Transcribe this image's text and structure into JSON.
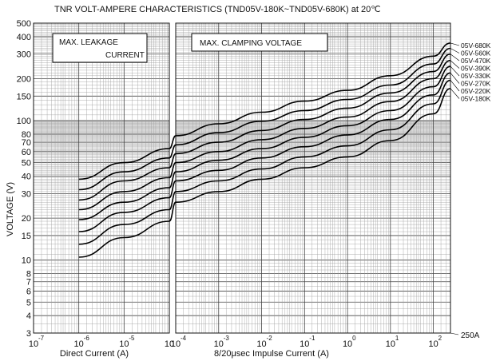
{
  "chart_data": {
    "type": "line",
    "title": "TNR  VOLT-AMPERE  CHARACTERISTICS (TND05V-180K~TND05V-680K)  at 20℃",
    "ylabel": "VOLTAGE (V)",
    "y_scale": "log",
    "ylim": [
      3,
      500
    ],
    "y_ticks": [
      {
        "v": 3,
        "label": "3"
      },
      {
        "v": 4,
        "label": "4"
      },
      {
        "v": 5,
        "label": "5"
      },
      {
        "v": 6,
        "label": "6"
      },
      {
        "v": 7,
        "label": "7"
      },
      {
        "v": 8,
        "label": "8"
      },
      {
        "v": 10,
        "label": "10"
      },
      {
        "v": 15,
        "label": "15"
      },
      {
        "v": 20,
        "label": "20"
      },
      {
        "v": 30,
        "label": "30"
      },
      {
        "v": 40,
        "label": "40"
      },
      {
        "v": 50,
        "label": "50"
      },
      {
        "v": 60,
        "label": "60"
      },
      {
        "v": 70,
        "label": "70"
      },
      {
        "v": 80,
        "label": "80"
      },
      {
        "v": 100,
        "label": "100"
      },
      {
        "v": 150,
        "label": "150"
      },
      {
        "v": 200,
        "label": "200"
      },
      {
        "v": 300,
        "label": "300"
      },
      {
        "v": 400,
        "label": "400"
      },
      {
        "v": 500,
        "label": "500"
      }
    ],
    "left_panel": {
      "xlabel": "Direct  Current (A)",
      "x_scale": "log",
      "xlim": [
        1e-07,
        0.0001
      ],
      "x_ticks": [
        {
          "v": 1e-07,
          "base": "10",
          "exp": "-7"
        },
        {
          "v": 1e-06,
          "base": "10",
          "exp": "-6"
        },
        {
          "v": 1e-05,
          "base": "10",
          "exp": "-5"
        },
        {
          "v": 0.0001,
          "base": "10",
          "exp": ""
        }
      ],
      "box_label": [
        "MAX.     LEAKAGE",
        "CURRENT"
      ]
    },
    "right_panel": {
      "xlabel": "8/20μsec  Impulse  Current (A)",
      "x_scale": "log",
      "xlim": [
        0.0001,
        250
      ],
      "x_ticks": [
        {
          "v": 0.0001,
          "base": "10",
          "exp": "-4"
        },
        {
          "v": 0.001,
          "base": "10",
          "exp": "-3"
        },
        {
          "v": 0.01,
          "base": "10",
          "exp": "-2"
        },
        {
          "v": 0.1,
          "base": "10",
          "exp": "-1"
        },
        {
          "v": 1,
          "base": "10",
          "exp": "0"
        },
        {
          "v": 10,
          "base": "10",
          "exp": "1"
        },
        {
          "v": 100,
          "base": "10",
          "exp": "2"
        }
      ],
      "box_label": "MAX.  CLAMPING  VOLTAGE",
      "end_annotation": "250A"
    },
    "series": [
      {
        "name": "05V-680K",
        "leakage": [
          [
            1e-06,
            38
          ],
          [
            1e-05,
            50
          ],
          [
            0.0001,
            63
          ]
        ],
        "clamp": [
          [
            0.0001,
            78
          ],
          [
            0.001,
            95
          ],
          [
            0.01,
            115
          ],
          [
            0.1,
            138
          ],
          [
            1,
            165
          ],
          [
            10,
            210
          ],
          [
            100,
            290
          ],
          [
            250,
            360
          ]
        ]
      },
      {
        "name": "05V-560K",
        "leakage": [
          [
            1e-06,
            32
          ],
          [
            1e-05,
            43
          ],
          [
            0.0001,
            54
          ]
        ],
        "clamp": [
          [
            0.0001,
            67
          ],
          [
            0.001,
            82
          ],
          [
            0.01,
            99
          ],
          [
            0.1,
            118
          ],
          [
            1,
            142
          ],
          [
            10,
            180
          ],
          [
            100,
            255
          ],
          [
            250,
            330
          ]
        ]
      },
      {
        "name": "05V-470K",
        "leakage": [
          [
            1e-06,
            27
          ],
          [
            1e-05,
            37
          ],
          [
            0.0001,
            46
          ]
        ],
        "clamp": [
          [
            0.0001,
            58
          ],
          [
            0.001,
            70
          ],
          [
            0.01,
            85
          ],
          [
            0.1,
            102
          ],
          [
            1,
            123
          ],
          [
            10,
            158
          ],
          [
            100,
            225
          ],
          [
            250,
            300
          ]
        ]
      },
      {
        "name": "05V-390K",
        "leakage": [
          [
            1e-06,
            23
          ],
          [
            1e-05,
            31
          ],
          [
            0.0001,
            39
          ]
        ],
        "clamp": [
          [
            0.0001,
            50
          ],
          [
            0.001,
            60
          ],
          [
            0.01,
            73
          ],
          [
            0.1,
            88
          ],
          [
            1,
            106
          ],
          [
            10,
            137
          ],
          [
            100,
            200
          ],
          [
            250,
            270
          ]
        ]
      },
      {
        "name": "05V-330K",
        "leakage": [
          [
            1e-06,
            19.5
          ],
          [
            1e-05,
            26
          ],
          [
            0.0001,
            33
          ]
        ],
        "clamp": [
          [
            0.0001,
            43
          ],
          [
            0.001,
            52
          ],
          [
            0.01,
            63
          ],
          [
            0.1,
            76
          ],
          [
            1,
            92
          ],
          [
            10,
            118
          ],
          [
            100,
            175
          ],
          [
            250,
            245
          ]
        ]
      },
      {
        "name": "05V-270K",
        "leakage": [
          [
            1e-06,
            16
          ],
          [
            1e-05,
            22
          ],
          [
            0.0001,
            28
          ]
        ],
        "clamp": [
          [
            0.0001,
            37
          ],
          [
            0.001,
            44
          ],
          [
            0.01,
            54
          ],
          [
            0.1,
            65
          ],
          [
            1,
            79
          ],
          [
            10,
            102
          ],
          [
            100,
            153
          ],
          [
            250,
            220
          ]
        ]
      },
      {
        "name": "05V-220K",
        "leakage": [
          [
            1e-06,
            13
          ],
          [
            1e-05,
            18
          ],
          [
            0.0001,
            23
          ]
        ],
        "clamp": [
          [
            0.0001,
            31
          ],
          [
            0.001,
            37
          ],
          [
            0.01,
            45
          ],
          [
            0.1,
            55
          ],
          [
            1,
            66
          ],
          [
            10,
            86
          ],
          [
            100,
            132
          ],
          [
            250,
            195
          ]
        ]
      },
      {
        "name": "05V-180K",
        "leakage": [
          [
            1e-06,
            10.5
          ],
          [
            1e-05,
            14.5
          ],
          [
            0.0001,
            19
          ]
        ],
        "clamp": [
          [
            0.0001,
            26
          ],
          [
            0.001,
            31
          ],
          [
            0.01,
            38
          ],
          [
            0.1,
            46
          ],
          [
            1,
            55
          ],
          [
            10,
            72
          ],
          [
            100,
            112
          ],
          [
            250,
            170
          ]
        ]
      }
    ],
    "grid": true
  }
}
